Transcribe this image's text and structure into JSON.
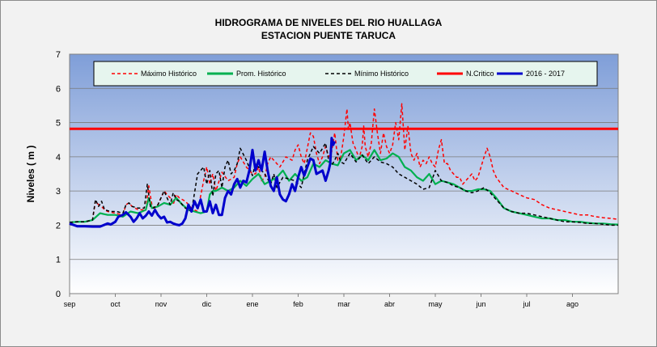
{
  "chart_data": {
    "type": "line",
    "title": "HIDROGRAMA DE NIVELES DEL RIO HUALLAGA",
    "subtitle": "ESTACION PUENTE TARUCA",
    "xlabel": "",
    "ylabel": "Niveles ( m )",
    "ylim": [
      0,
      7
    ],
    "yticks": [
      "0",
      "1",
      "2",
      "3",
      "4",
      "5",
      "6",
      "7"
    ],
    "xlim": [
      0,
      360
    ],
    "categories": [
      "sep",
      "oct",
      "nov",
      "dic",
      "ene",
      "feb",
      "mar",
      "abr",
      "may",
      "jun",
      "jul",
      "ago"
    ],
    "grid": true,
    "legend_position": "top",
    "critical_level": 4.82,
    "series": [
      {
        "name": "Máximo Histórico",
        "color": "#ff0000",
        "style": "dashed",
        "x": [
          0,
          5,
          10,
          15,
          17,
          19,
          21,
          23,
          25,
          30,
          35,
          37,
          39,
          41,
          45,
          50,
          52,
          54,
          56,
          58,
          62,
          66,
          68,
          70,
          72,
          76,
          80,
          84,
          88,
          90,
          92,
          94,
          96,
          100,
          104,
          108,
          110,
          112,
          114,
          116,
          118,
          120,
          122,
          124,
          126,
          128,
          130,
          132,
          134,
          138,
          142,
          146,
          148,
          150,
          152,
          154,
          156,
          158,
          160,
          162,
          164,
          166,
          168,
          170,
          172,
          174,
          176,
          178,
          180,
          182,
          183,
          184,
          186,
          188,
          190,
          192,
          193,
          194,
          196,
          198,
          200,
          202,
          204,
          206,
          208,
          210,
          212,
          214,
          216,
          218,
          220,
          222,
          224,
          226,
          228,
          230,
          232,
          234,
          236,
          238,
          240,
          242,
          244,
          246,
          248,
          250,
          252,
          254,
          256,
          258,
          260,
          262,
          264,
          266,
          268,
          270,
          272,
          274,
          276,
          278,
          280,
          285,
          290,
          295,
          300,
          305,
          310,
          315,
          320,
          325,
          330,
          335,
          340,
          345,
          350,
          355,
          360
        ],
        "values": [
          2.08,
          2.1,
          2.1,
          2.15,
          2.7,
          2.6,
          2.55,
          2.45,
          2.4,
          2.35,
          2.3,
          2.6,
          2.65,
          2.55,
          2.45,
          2.45,
          3.15,
          2.6,
          2.5,
          2.6,
          3.0,
          2.8,
          2.6,
          2.9,
          2.8,
          2.7,
          2.5,
          2.4,
          3.3,
          3.7,
          3.2,
          3.5,
          3.0,
          3.55,
          3.3,
          3.4,
          3.8,
          4.0,
          3.85,
          3.7,
          3.6,
          3.5,
          3.5,
          3.7,
          3.3,
          3.4,
          3.8,
          4.0,
          3.9,
          3.7,
          4.0,
          3.9,
          4.2,
          4.35,
          4.0,
          3.8,
          4.25,
          4.7,
          4.6,
          4.1,
          3.8,
          4.0,
          4.3,
          4.0,
          4.15,
          4.7,
          3.9,
          4.0,
          4.6,
          5.4,
          4.8,
          5.0,
          4.4,
          4.2,
          3.95,
          4.3,
          4.9,
          4.3,
          4.0,
          4.4,
          5.4,
          4.7,
          4.1,
          4.7,
          4.3,
          4.1,
          4.35,
          5.0,
          4.5,
          5.55,
          4.2,
          4.9,
          4.1,
          3.9,
          4.1,
          3.7,
          3.9,
          3.8,
          4.0,
          3.8,
          3.7,
          4.2,
          4.5,
          3.8,
          3.8,
          3.6,
          3.5,
          3.4,
          3.4,
          3.2,
          3.3,
          3.4,
          3.5,
          3.3,
          3.4,
          3.7,
          4.0,
          4.25,
          4.0,
          3.6,
          3.4,
          3.1,
          3.0,
          2.9,
          2.8,
          2.75,
          2.6,
          2.5,
          2.45,
          2.4,
          2.35,
          2.3,
          2.3,
          2.25,
          2.22,
          2.2,
          2.17
        ]
      },
      {
        "name": "Prom. Histórico",
        "color": "#00b050",
        "style": "solid",
        "x": [
          0,
          5,
          10,
          15,
          20,
          25,
          30,
          35,
          40,
          45,
          50,
          52,
          54,
          58,
          62,
          66,
          70,
          74,
          78,
          82,
          86,
          90,
          92,
          94,
          96,
          100,
          104,
          108,
          112,
          116,
          120,
          124,
          128,
          132,
          136,
          140,
          144,
          148,
          152,
          156,
          160,
          164,
          168,
          172,
          176,
          180,
          184,
          188,
          192,
          196,
          200,
          204,
          208,
          212,
          216,
          220,
          224,
          228,
          232,
          236,
          240,
          244,
          248,
          252,
          256,
          260,
          264,
          268,
          272,
          276,
          280,
          285,
          290,
          295,
          300,
          305,
          310,
          315,
          320,
          325,
          330,
          335,
          340,
          345,
          350,
          355,
          360
        ],
        "values": [
          2.08,
          2.1,
          2.1,
          2.15,
          2.35,
          2.3,
          2.3,
          2.25,
          2.4,
          2.35,
          2.45,
          2.8,
          2.5,
          2.55,
          2.65,
          2.6,
          2.8,
          2.6,
          2.45,
          2.4,
          2.35,
          2.4,
          2.9,
          3.0,
          3.0,
          3.1,
          3.0,
          3.1,
          3.3,
          3.15,
          3.35,
          3.5,
          3.2,
          3.3,
          3.4,
          3.6,
          3.3,
          3.5,
          3.3,
          3.4,
          3.8,
          3.7,
          3.9,
          3.8,
          3.75,
          4.1,
          4.2,
          3.9,
          4.05,
          3.9,
          4.2,
          3.9,
          3.95,
          4.1,
          4.0,
          3.7,
          3.6,
          3.4,
          3.3,
          3.5,
          3.2,
          3.3,
          3.25,
          3.2,
          3.1,
          3.0,
          3.0,
          3.05,
          3.05,
          3.0,
          2.8,
          2.5,
          2.4,
          2.35,
          2.3,
          2.25,
          2.2,
          2.2,
          2.15,
          2.15,
          2.1,
          2.1,
          2.07,
          2.05,
          2.05,
          2.03,
          2.02
        ]
      },
      {
        "name": "Mínimo Histórico",
        "color": "#000000",
        "style": "dashed",
        "x": [
          0,
          5,
          10,
          15,
          17,
          19,
          21,
          23,
          27,
          31,
          35,
          37,
          39,
          41,
          45,
          49,
          51,
          53,
          55,
          58,
          62,
          64,
          66,
          68,
          70,
          72,
          76,
          80,
          84,
          88,
          90,
          92,
          94,
          96,
          98,
          100,
          102,
          104,
          106,
          108,
          110,
          112,
          116,
          120,
          122,
          124,
          128,
          132,
          134,
          136,
          140,
          144,
          148,
          152,
          156,
          160,
          164,
          168,
          170,
          172,
          174,
          176,
          178,
          180,
          184,
          188,
          192,
          196,
          200,
          204,
          208,
          212,
          216,
          220,
          224,
          228,
          232,
          236,
          240,
          244,
          248,
          252,
          256,
          260,
          264,
          268,
          272,
          276,
          280,
          285,
          290,
          295,
          300,
          305,
          310,
          315,
          320,
          325,
          330,
          335,
          340,
          345,
          350,
          355,
          360
        ],
        "values": [
          2.08,
          2.1,
          2.1,
          2.15,
          2.75,
          2.55,
          2.7,
          2.45,
          2.4,
          2.4,
          2.35,
          2.6,
          2.65,
          2.55,
          2.5,
          2.5,
          3.2,
          2.55,
          2.5,
          2.6,
          3.0,
          2.8,
          2.6,
          2.95,
          2.75,
          2.7,
          2.5,
          2.4,
          3.5,
          3.7,
          3.2,
          3.6,
          2.85,
          3.5,
          3.6,
          3.1,
          3.7,
          3.9,
          3.5,
          3.6,
          3.8,
          4.25,
          3.9,
          3.45,
          3.8,
          3.7,
          3.5,
          3.2,
          3.5,
          3.1,
          3.4,
          3.35,
          3.3,
          3.1,
          3.9,
          4.3,
          4.1,
          4.4,
          3.9,
          3.75,
          3.9,
          4.1,
          3.85,
          3.8,
          4.1,
          3.85,
          4.05,
          3.8,
          4.0,
          3.85,
          3.8,
          3.7,
          3.5,
          3.4,
          3.3,
          3.2,
          3.05,
          3.1,
          3.6,
          3.3,
          3.25,
          3.15,
          3.1,
          3.0,
          2.95,
          3.0,
          3.1,
          2.95,
          2.75,
          2.5,
          2.4,
          2.35,
          2.35,
          2.3,
          2.25,
          2.2,
          2.15,
          2.1,
          2.1,
          2.08,
          2.05,
          2.05,
          2.03,
          2.0,
          2.0
        ]
      },
      {
        "name": "N.Critico",
        "color": "#ff0000",
        "style": "solid",
        "x": [
          0,
          360
        ],
        "values": [
          4.82,
          4.82
        ]
      },
      {
        "name": "2016 - 2017",
        "color": "#0000cc",
        "style": "solid",
        "x": [
          0,
          5,
          10,
          15,
          20,
          25,
          27,
          30,
          32,
          35,
          37,
          40,
          42,
          44,
          46,
          48,
          50,
          52,
          54,
          56,
          58,
          60,
          62,
          64,
          66,
          68,
          70,
          72,
          74,
          76,
          78,
          80,
          82,
          84,
          86,
          88,
          90,
          92,
          94,
          96,
          98,
          100,
          102,
          104,
          106,
          108,
          110,
          112,
          114,
          116,
          118,
          120,
          122,
          124,
          126,
          128,
          130,
          132,
          134,
          136,
          138,
          140,
          142,
          144,
          146,
          148,
          150,
          152,
          154,
          156,
          158,
          160,
          162,
          164,
          166,
          168,
          170,
          171,
          172,
          173,
          174
        ],
        "values": [
          2.05,
          1.97,
          1.97,
          1.96,
          1.96,
          2.05,
          2.02,
          2.1,
          2.25,
          2.3,
          2.38,
          2.25,
          2.1,
          2.2,
          2.35,
          2.2,
          2.28,
          2.4,
          2.28,
          2.45,
          2.3,
          2.2,
          2.25,
          2.08,
          2.1,
          2.05,
          2.02,
          2.0,
          2.05,
          2.2,
          2.6,
          2.4,
          2.7,
          2.5,
          2.75,
          2.4,
          2.4,
          2.7,
          2.35,
          2.6,
          2.3,
          2.3,
          2.8,
          3.0,
          2.9,
          3.2,
          3.35,
          3.1,
          3.3,
          3.25,
          3.6,
          4.2,
          3.6,
          3.9,
          3.6,
          4.15,
          3.6,
          3.15,
          3.0,
          3.4,
          2.9,
          2.75,
          2.7,
          2.9,
          3.2,
          3.0,
          3.4,
          3.7,
          3.45,
          3.7,
          3.95,
          3.9,
          3.5,
          3.55,
          3.6,
          3.3,
          3.6,
          3.8,
          4.55,
          4.35,
          4.45
        ]
      }
    ]
  }
}
